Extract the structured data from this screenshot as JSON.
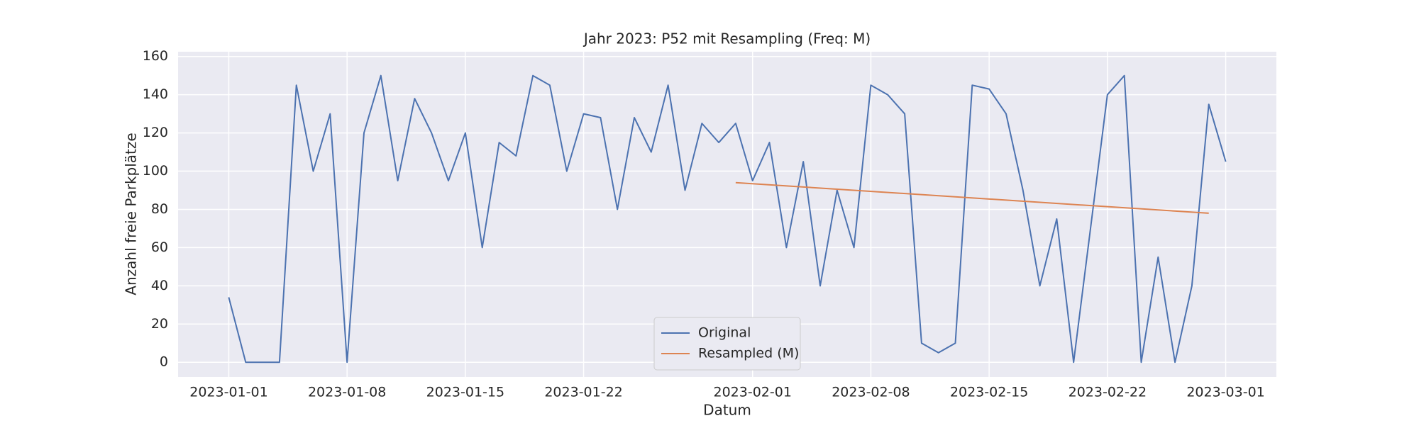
{
  "chart_data": {
    "type": "line",
    "title": "Jahr 2023: P52 mit Resampling (Freq: M)",
    "x_label": "Datum",
    "y_label": "Anzahl freie Parkplätze",
    "series": [
      {
        "name": "Original",
        "color": "#4c72b0",
        "x": [
          "2023-01-01",
          "2023-01-02",
          "2023-01-03",
          "2023-01-04",
          "2023-01-05",
          "2023-01-06",
          "2023-01-07",
          "2023-01-08",
          "2023-01-09",
          "2023-01-10",
          "2023-01-11",
          "2023-01-12",
          "2023-01-13",
          "2023-01-14",
          "2023-01-15",
          "2023-01-16",
          "2023-01-17",
          "2023-01-18",
          "2023-01-19",
          "2023-01-20",
          "2023-01-21",
          "2023-01-22",
          "2023-01-23",
          "2023-01-24",
          "2023-01-25",
          "2023-01-26",
          "2023-01-27",
          "2023-01-28",
          "2023-01-29",
          "2023-01-30",
          "2023-01-31",
          "2023-02-01",
          "2023-02-02",
          "2023-02-03",
          "2023-02-04",
          "2023-02-05",
          "2023-02-06",
          "2023-02-07",
          "2023-02-08",
          "2023-02-09",
          "2023-02-10",
          "2023-02-11",
          "2023-02-12",
          "2023-02-13",
          "2023-02-14",
          "2023-02-15",
          "2023-02-16",
          "2023-02-17",
          "2023-02-18",
          "2023-02-19",
          "2023-02-20",
          "2023-02-21",
          "2023-02-22",
          "2023-02-23",
          "2023-02-24",
          "2023-02-25",
          "2023-02-26",
          "2023-02-27",
          "2023-02-28",
          "2023-03-01"
        ],
        "values": [
          34,
          0,
          0,
          0,
          145,
          100,
          130,
          0,
          120,
          150,
          95,
          138,
          120,
          95,
          120,
          60,
          115,
          108,
          150,
          145,
          100,
          130,
          128,
          80,
          128,
          110,
          145,
          90,
          125,
          115,
          125,
          95,
          115,
          60,
          105,
          40,
          90,
          60,
          145,
          140,
          130,
          10,
          5,
          10,
          145,
          143,
          130,
          90,
          40,
          75,
          0,
          70,
          140,
          150,
          0,
          55,
          0,
          40,
          135,
          105
        ]
      },
      {
        "name": "Resampled (M)",
        "color": "#dd8452",
        "x": [
          "2023-01-31",
          "2023-02-28"
        ],
        "values": [
          94,
          78
        ]
      }
    ],
    "xlim": [
      "2022-12-29",
      "2023-03-04"
    ],
    "xticks": [
      "2023-01-01",
      "2023-01-08",
      "2023-01-15",
      "2023-01-22",
      "2023-02-01",
      "2023-02-08",
      "2023-02-15",
      "2023-02-22",
      "2023-03-01"
    ],
    "ylim": [
      -7.7,
      162.5
    ],
    "yticks": [
      0,
      20,
      40,
      60,
      80,
      100,
      120,
      140,
      160
    ],
    "grid": true,
    "legend": "lower center"
  }
}
